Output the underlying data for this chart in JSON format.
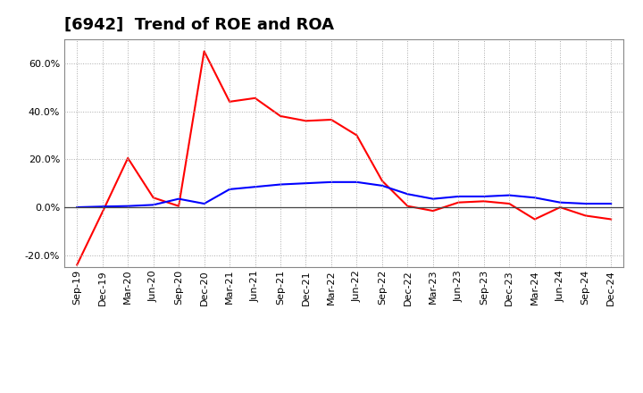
{
  "title": "[6942]  Trend of ROE and ROA",
  "x_labels": [
    "Sep-19",
    "Dec-19",
    "Mar-20",
    "Jun-20",
    "Sep-20",
    "Dec-20",
    "Mar-21",
    "Jun-21",
    "Sep-21",
    "Dec-21",
    "Mar-22",
    "Jun-22",
    "Sep-22",
    "Dec-22",
    "Mar-23",
    "Jun-23",
    "Sep-23",
    "Dec-23",
    "Mar-24",
    "Jun-24",
    "Sep-24",
    "Dec-24"
  ],
  "roe": [
    -24.0,
    -2.0,
    20.5,
    4.0,
    0.5,
    65.0,
    44.0,
    45.5,
    38.0,
    36.0,
    36.5,
    30.0,
    11.0,
    0.5,
    -1.5,
    2.0,
    2.5,
    1.5,
    -5.0,
    0.0,
    -3.5,
    -5.0
  ],
  "roa": [
    0.0,
    0.3,
    0.5,
    1.0,
    3.5,
    1.5,
    7.5,
    8.5,
    9.5,
    10.0,
    10.5,
    10.5,
    9.0,
    5.5,
    3.5,
    4.5,
    4.5,
    5.0,
    4.0,
    2.0,
    1.5,
    1.5
  ],
  "roe_color": "#ff0000",
  "roa_color": "#0000ff",
  "background_color": "#ffffff",
  "plot_bg_color": "#ffffff",
  "grid_color": "#aaaaaa",
  "ylim": [
    -25,
    70
  ],
  "yticks": [
    -20.0,
    0.0,
    20.0,
    40.0,
    60.0
  ],
  "line_width": 1.5,
  "title_fontsize": 13,
  "tick_fontsize": 8,
  "legend_fontsize": 10
}
